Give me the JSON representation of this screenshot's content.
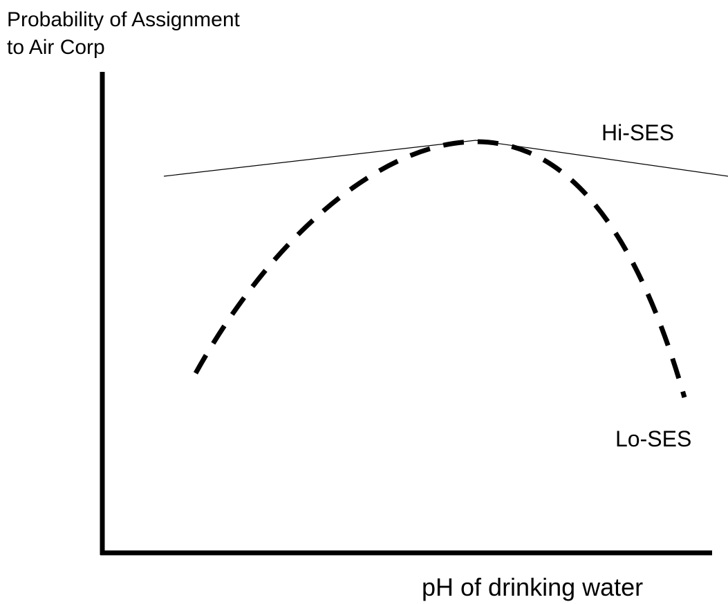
{
  "y_axis_label": {
    "line1": "Probability of Assignment",
    "line2": "to Air Corp"
  },
  "x_axis_label": "pH of drinking water",
  "curve_labels": {
    "hi": "Hi-SES",
    "lo": "Lo-SES"
  }
}
